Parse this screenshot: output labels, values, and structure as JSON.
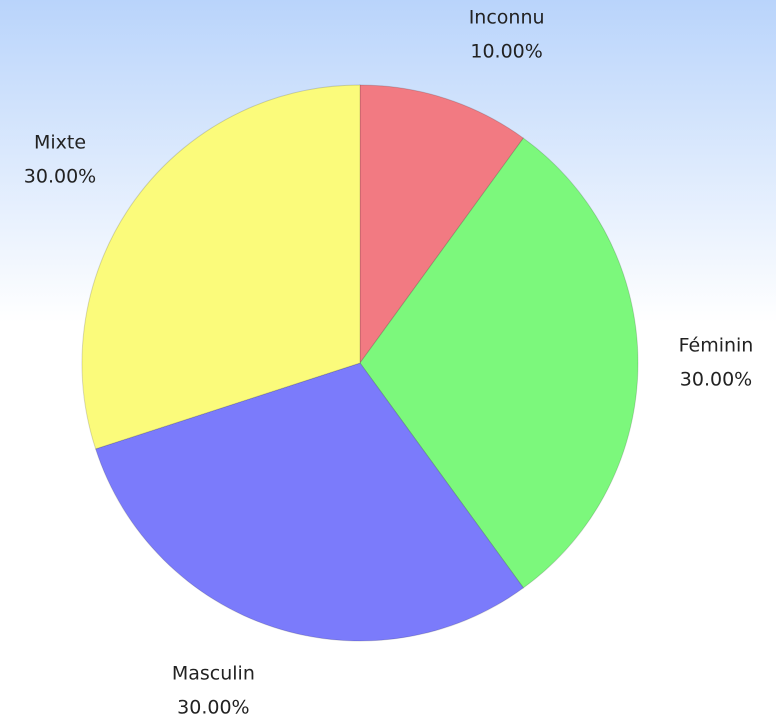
{
  "chart_data": {
    "type": "pie",
    "categories": [
      "Inconnu",
      "Féminin",
      "Masculin",
      "Mixte"
    ],
    "values": [
      10,
      30,
      30,
      30
    ],
    "value_labels": [
      "10.00%",
      "30.00%",
      "30.00%",
      "30.00%"
    ],
    "colors": [
      "#f27a82",
      "#7cf87c",
      "#7b7bfb",
      "#fbfb7b"
    ]
  }
}
